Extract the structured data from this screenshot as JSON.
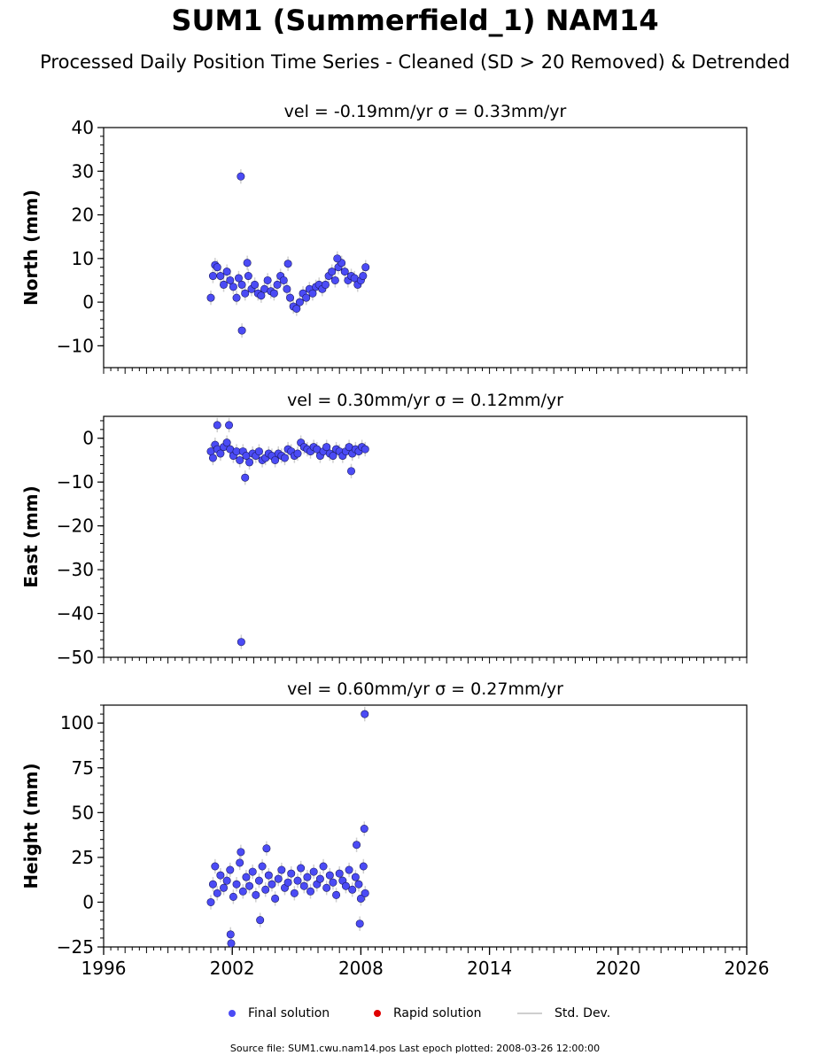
{
  "header": {
    "title": "SUM1 (Summerfield_1) NAM14",
    "subtitle": "Processed Daily Position Time Series - Cleaned (SD > 20 Removed) & Detrended"
  },
  "chart_data": [
    {
      "type": "scatter",
      "panel": "north",
      "title": "vel = -0.19mm/yr   σ = 0.33mm/yr",
      "ylabel": "North (mm)",
      "xlim": [
        1996,
        2026
      ],
      "ylim": [
        -15,
        40
      ],
      "yticks": [
        -10,
        0,
        10,
        20,
        30,
        40
      ],
      "series": [
        {
          "name": "Final solution",
          "x": [
            2001.0,
            2001.1,
            2001.2,
            2001.3,
            2001.45,
            2001.6,
            2001.75,
            2001.9,
            2002.05,
            2002.2,
            2002.3,
            2002.45,
            2002.6,
            2002.75,
            2002.9,
            2003.05,
            2003.2,
            2003.35,
            2003.5,
            2003.65,
            2003.8,
            2003.95,
            2004.1,
            2004.25,
            2004.4,
            2004.55,
            2004.7,
            2004.85,
            2005.0,
            2005.15,
            2005.3,
            2005.45,
            2005.6,
            2005.75,
            2005.9,
            2006.05,
            2006.2,
            2006.35,
            2006.5,
            2006.65,
            2006.8,
            2006.95,
            2007.1,
            2007.25,
            2007.4,
            2007.55,
            2007.7,
            2007.85,
            2008.0,
            2008.1,
            2008.22,
            2002.4,
            2002.45,
            2002.7,
            2004.6,
            2006.9
          ],
          "y": [
            1.0,
            6.0,
            8.5,
            8.0,
            6.0,
            4.0,
            7.0,
            5.0,
            3.5,
            1.0,
            5.5,
            4.0,
            2.0,
            6.0,
            3.0,
            4.0,
            2.0,
            1.5,
            3.0,
            5.0,
            2.5,
            2.0,
            4.0,
            6.0,
            5.0,
            3.0,
            1.0,
            -1.0,
            -1.5,
            0.0,
            2.0,
            1.0,
            3.0,
            2.0,
            3.5,
            4.0,
            3.0,
            4.0,
            6.0,
            7.0,
            5.0,
            8.0,
            9.0,
            7.0,
            5.0,
            6.0,
            5.5,
            4.0,
            5.0,
            6.0,
            8.0,
            28.8,
            -6.5,
            9.0,
            8.8,
            10.0
          ]
        },
        {
          "name": "Rapid solution",
          "x": [],
          "y": []
        }
      ]
    },
    {
      "type": "scatter",
      "panel": "east",
      "title": "vel = 0.30mm/yr   σ = 0.12mm/yr",
      "ylabel": "East (mm)",
      "xlim": [
        1996,
        2026
      ],
      "ylim": [
        -50,
        5
      ],
      "yticks": [
        -50,
        -40,
        -30,
        -20,
        -10,
        0
      ],
      "series": [
        {
          "name": "Final solution",
          "x": [
            2001.0,
            2001.1,
            2001.2,
            2001.3,
            2001.45,
            2001.6,
            2001.75,
            2001.9,
            2002.05,
            2002.2,
            2002.35,
            2002.5,
            2002.65,
            2002.8,
            2002.95,
            2003.1,
            2003.25,
            2003.4,
            2003.55,
            2003.7,
            2003.85,
            2004.0,
            2004.15,
            2004.3,
            2004.45,
            2004.6,
            2004.75,
            2004.9,
            2005.05,
            2005.2,
            2005.35,
            2005.5,
            2005.65,
            2005.8,
            2005.95,
            2006.1,
            2006.25,
            2006.4,
            2006.55,
            2006.7,
            2006.85,
            2007.0,
            2007.15,
            2007.3,
            2007.45,
            2007.6,
            2007.75,
            2007.9,
            2008.05,
            2008.2,
            2002.42,
            2002.6,
            2001.3,
            2001.85,
            2007.55
          ],
          "y": [
            -3.0,
            -4.5,
            -1.5,
            -2.5,
            -3.5,
            -2.0,
            -1.0,
            -2.5,
            -4.0,
            -3.0,
            -5.0,
            -3.0,
            -4.0,
            -5.5,
            -3.5,
            -4.0,
            -3.0,
            -5.0,
            -4.5,
            -3.5,
            -4.0,
            -5.0,
            -3.5,
            -4.0,
            -4.5,
            -2.5,
            -3.0,
            -4.0,
            -3.5,
            -1.0,
            -2.0,
            -2.5,
            -3.0,
            -2.0,
            -2.5,
            -4.0,
            -3.0,
            -2.0,
            -3.5,
            -4.0,
            -2.5,
            -3.0,
            -4.0,
            -3.0,
            -2.0,
            -3.5,
            -2.5,
            -3.0,
            -2.0,
            -2.5,
            -46.5,
            -9.0,
            3.0,
            3.0,
            -7.5
          ]
        },
        {
          "name": "Rapid solution",
          "x": [],
          "y": []
        }
      ]
    },
    {
      "type": "scatter",
      "panel": "height",
      "title": "vel = 0.60mm/yr   σ = 0.27mm/yr",
      "ylabel": "Height (mm)",
      "xlim": [
        1996,
        2026
      ],
      "ylim": [
        -25,
        110
      ],
      "yticks": [
        -25,
        0,
        25,
        50,
        75,
        100
      ],
      "xticks": [
        1996,
        2002,
        2008,
        2014,
        2020,
        2026
      ],
      "series": [
        {
          "name": "Final solution",
          "x": [
            2001.0,
            2001.1,
            2001.2,
            2001.3,
            2001.45,
            2001.6,
            2001.75,
            2001.9,
            2002.05,
            2002.2,
            2002.35,
            2002.5,
            2002.65,
            2002.8,
            2002.95,
            2003.1,
            2003.25,
            2003.4,
            2003.55,
            2003.7,
            2003.85,
            2004.0,
            2004.15,
            2004.3,
            2004.45,
            2004.6,
            2004.75,
            2004.9,
            2005.05,
            2005.2,
            2005.35,
            2005.5,
            2005.65,
            2005.8,
            2005.95,
            2006.1,
            2006.25,
            2006.4,
            2006.55,
            2006.7,
            2006.85,
            2007.0,
            2007.15,
            2007.3,
            2007.45,
            2007.6,
            2007.75,
            2007.9,
            2008.0,
            2008.12,
            2008.2,
            2008.18,
            2008.16,
            2001.95,
            2001.92,
            2002.4,
            2003.6,
            2007.8,
            2007.95,
            2003.3
          ],
          "y": [
            0.0,
            10.0,
            20.0,
            5.0,
            15.0,
            8.0,
            12.0,
            18.0,
            3.0,
            10.0,
            22.0,
            6.0,
            14.0,
            9.0,
            17.0,
            4.0,
            12.0,
            20.0,
            7.0,
            15.0,
            10.0,
            2.0,
            13.0,
            18.0,
            8.0,
            11.0,
            16.0,
            5.0,
            12.0,
            19.0,
            9.0,
            14.0,
            6.0,
            17.0,
            10.0,
            13.0,
            20.0,
            8.0,
            15.0,
            11.0,
            4.0,
            16.0,
            12.0,
            9.0,
            18.0,
            7.0,
            14.0,
            10.0,
            2.0,
            20.0,
            5.0,
            105.0,
            41.0,
            -23.0,
            -18.0,
            28.0,
            30.0,
            32.0,
            -12.0,
            -10.0
          ]
        },
        {
          "name": "Rapid solution",
          "x": [],
          "y": []
        }
      ]
    }
  ],
  "legend": {
    "final": "Final solution",
    "rapid": "Rapid solution",
    "std": "Std. Dev."
  },
  "colors": {
    "final": "#4b4bf5",
    "rapid": "#e00000",
    "std": "#cfcfcf"
  },
  "footer": {
    "source": "Source file: SUM1.cwu.nam14.pos  Last epoch plotted: 2008-03-26 12:00:00"
  }
}
